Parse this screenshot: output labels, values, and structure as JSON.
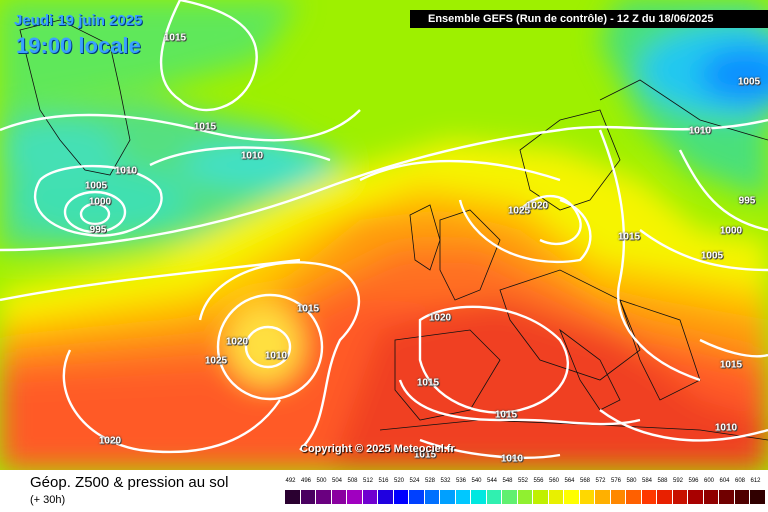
{
  "date_label": "Jeudi 19 juin 2025",
  "time_label": "19:00 locale",
  "header": "Ensemble GEFS  (Run de contrôle)  -  12 Z du 18/06/2025",
  "copyright": "Copyright © 2025 Meteociel.fr",
  "footer": {
    "title": "Géop. Z500 & pression au sol",
    "subtitle": "(+ 30h)"
  },
  "legend": {
    "labels": [
      "492",
      "496",
      "500",
      "504",
      "508",
      "512",
      "516",
      "520",
      "524",
      "528",
      "532",
      "536",
      "540",
      "544",
      "548",
      "552",
      "556",
      "560",
      "564",
      "568",
      "572",
      "576",
      "580",
      "584",
      "588",
      "592",
      "596",
      "600",
      "604",
      "608",
      "612"
    ],
    "colors": [
      "#2a0030",
      "#4a0060",
      "#6a0080",
      "#8a00a0",
      "#a000c0",
      "#7000d0",
      "#2000e0",
      "#0000ff",
      "#0040ff",
      "#0070ff",
      "#00a0ff",
      "#00c8ff",
      "#00e8e0",
      "#30f0b0",
      "#60f070",
      "#90f030",
      "#c0f000",
      "#e8f000",
      "#ffff00",
      "#ffd800",
      "#ffb000",
      "#ff8800",
      "#ff6000",
      "#ff3800",
      "#e82000",
      "#c81000",
      "#a80000",
      "#900000",
      "#700000",
      "#500000",
      "#300000"
    ]
  },
  "isobar_labels": [
    {
      "text": "1015"
    },
    {
      "text": "1015"
    },
    {
      "text": "1010"
    },
    {
      "text": "1010"
    },
    {
      "text": "1005"
    },
    {
      "text": "1000"
    },
    {
      "text": "995"
    },
    {
      "text": "1005"
    },
    {
      "text": "1010"
    },
    {
      "text": "995"
    },
    {
      "text": "1000"
    },
    {
      "text": "1005"
    },
    {
      "text": "1025"
    },
    {
      "text": "1020"
    },
    {
      "text": "1015"
    },
    {
      "text": "1015"
    },
    {
      "text": "1020"
    },
    {
      "text": "1020"
    },
    {
      "text": "1010"
    },
    {
      "text": "1025"
    },
    {
      "text": "1015"
    },
    {
      "text": "1020"
    },
    {
      "text": "1015"
    },
    {
      "text": "1015"
    },
    {
      "text": "1010"
    },
    {
      "text": "1010"
    },
    {
      "text": "1015"
    }
  ]
}
